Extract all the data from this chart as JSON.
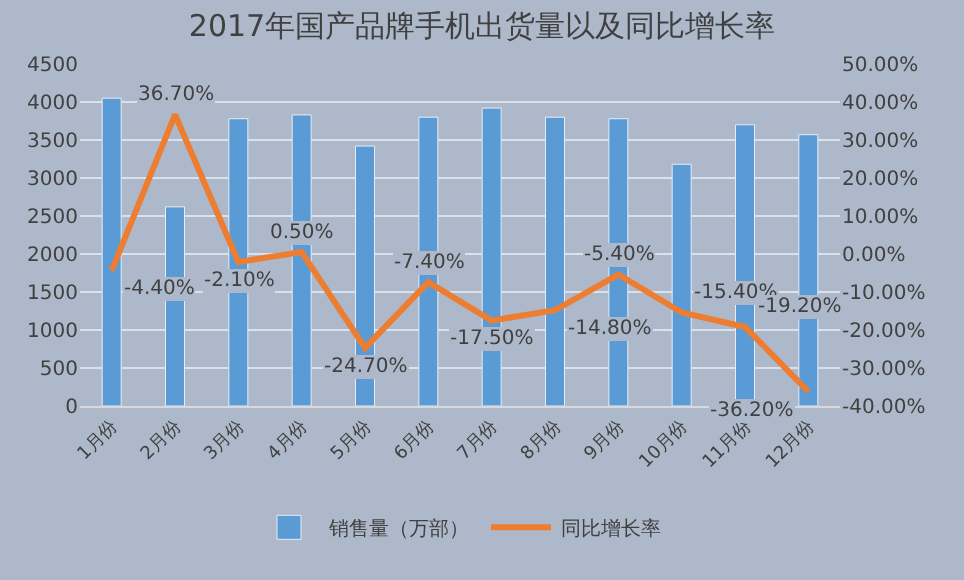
{
  "chart_data": {
    "type": "bar",
    "title": "2017年国产品牌手机出货量以及同比增长率",
    "categories": [
      "1月份",
      "2月份",
      "3月份",
      "4月份",
      "5月份",
      "6月份",
      "7月份",
      "8月份",
      "9月份",
      "10月份",
      "11月份",
      "12月份"
    ],
    "series": [
      {
        "name": "销售量（万部）",
        "color": "#5b9bd5",
        "values": [
          4050,
          2620,
          3780,
          3830,
          3420,
          3800,
          3920,
          3800,
          3780,
          3180,
          3700,
          3570
        ]
      },
      {
        "name": "同比增长率",
        "type": "line",
        "axis": "y2",
        "color": "#ed7d31",
        "values": [
          -4.4,
          36.7,
          -2.1,
          0.5,
          -24.7,
          -7.4,
          -17.5,
          -14.8,
          -5.4,
          -15.4,
          -19.2,
          -36.2
        ],
        "value_labels": [
          "-4.40%",
          "36.70%",
          "-2.10%",
          "0.50%",
          "-24.70%",
          "-7.40%",
          "-17.50%",
          "-14.80%",
          "-5.40%",
          "-15.40%",
          "-19.20%",
          "-36.20%"
        ]
      }
    ],
    "ylim": [
      0,
      4500
    ],
    "yticks": [
      0,
      500,
      1000,
      1500,
      2000,
      2500,
      3000,
      3500,
      4000,
      4500
    ],
    "y2lim": [
      -40,
      50
    ],
    "y2ticks": [
      {
        "value": -40,
        "label": "-40.00%"
      },
      {
        "value": -30,
        "label": "-30.00%"
      },
      {
        "value": -20,
        "label": "-20.00%"
      },
      {
        "value": -10,
        "label": "-10.00%"
      },
      {
        "value": 0,
        "label": "0.00%"
      },
      {
        "value": 10,
        "label": "10.00%"
      },
      {
        "value": 20,
        "label": "20.00%"
      },
      {
        "value": 30,
        "label": "30.00%"
      },
      {
        "value": 40,
        "label": "40.00%"
      },
      {
        "value": 50,
        "label": "50.00%"
      }
    ],
    "grid": "y",
    "legend": "bottom",
    "marker": "none",
    "line_style": "solid"
  }
}
